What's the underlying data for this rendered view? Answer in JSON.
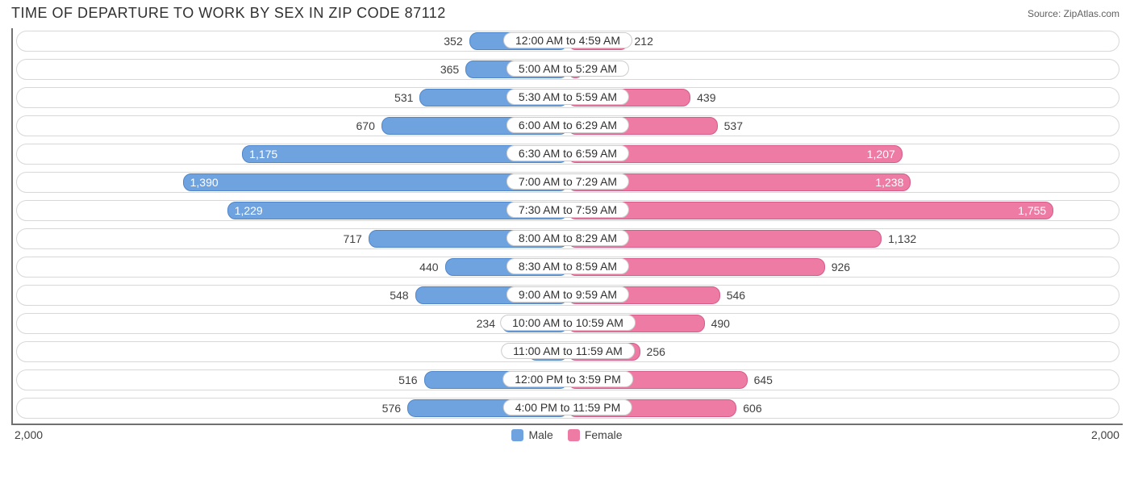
{
  "header": {
    "title": "TIME OF DEPARTURE TO WORK BY SEX IN ZIP CODE 87112",
    "source_label": "Source: ZipAtlas.com"
  },
  "chart": {
    "type": "diverging-bar",
    "max_value": 2000,
    "axis_left_label": "2,000",
    "axis_right_label": "2,000",
    "colors": {
      "male_fill": "#6fa3e0",
      "male_border": "#4f86c9",
      "female_fill": "#ed7ba4",
      "female_border": "#d65a88",
      "track_border": "#d8d8d8",
      "background": "#ffffff",
      "text": "#404040"
    },
    "legend": [
      {
        "label": "Male",
        "color": "#6fa3e0"
      },
      {
        "label": "Female",
        "color": "#ed7ba4"
      }
    ],
    "rows": [
      {
        "label": "12:00 AM to 4:59 AM",
        "male": 352,
        "male_fmt": "352",
        "female": 212,
        "female_fmt": "212"
      },
      {
        "label": "5:00 AM to 5:29 AM",
        "male": 365,
        "male_fmt": "365",
        "female": 49,
        "female_fmt": "49"
      },
      {
        "label": "5:30 AM to 5:59 AM",
        "male": 531,
        "male_fmt": "531",
        "female": 439,
        "female_fmt": "439"
      },
      {
        "label": "6:00 AM to 6:29 AM",
        "male": 670,
        "male_fmt": "670",
        "female": 537,
        "female_fmt": "537"
      },
      {
        "label": "6:30 AM to 6:59 AM",
        "male": 1175,
        "male_fmt": "1,175",
        "female": 1207,
        "female_fmt": "1,207"
      },
      {
        "label": "7:00 AM to 7:29 AM",
        "male": 1390,
        "male_fmt": "1,390",
        "female": 1238,
        "female_fmt": "1,238"
      },
      {
        "label": "7:30 AM to 7:59 AM",
        "male": 1229,
        "male_fmt": "1,229",
        "female": 1755,
        "female_fmt": "1,755"
      },
      {
        "label": "8:00 AM to 8:29 AM",
        "male": 717,
        "male_fmt": "717",
        "female": 1132,
        "female_fmt": "1,132"
      },
      {
        "label": "8:30 AM to 8:59 AM",
        "male": 440,
        "male_fmt": "440",
        "female": 926,
        "female_fmt": "926"
      },
      {
        "label": "9:00 AM to 9:59 AM",
        "male": 548,
        "male_fmt": "548",
        "female": 546,
        "female_fmt": "546"
      },
      {
        "label": "10:00 AM to 10:59 AM",
        "male": 234,
        "male_fmt": "234",
        "female": 490,
        "female_fmt": "490"
      },
      {
        "label": "11:00 AM to 11:59 AM",
        "male": 138,
        "male_fmt": "138",
        "female": 256,
        "female_fmt": "256"
      },
      {
        "label": "12:00 PM to 3:59 PM",
        "male": 516,
        "male_fmt": "516",
        "female": 645,
        "female_fmt": "645"
      },
      {
        "label": "4:00 PM to 11:59 PM",
        "male": 576,
        "male_fmt": "576",
        "female": 606,
        "female_fmt": "606"
      }
    ],
    "label_inside_threshold": 1150
  }
}
